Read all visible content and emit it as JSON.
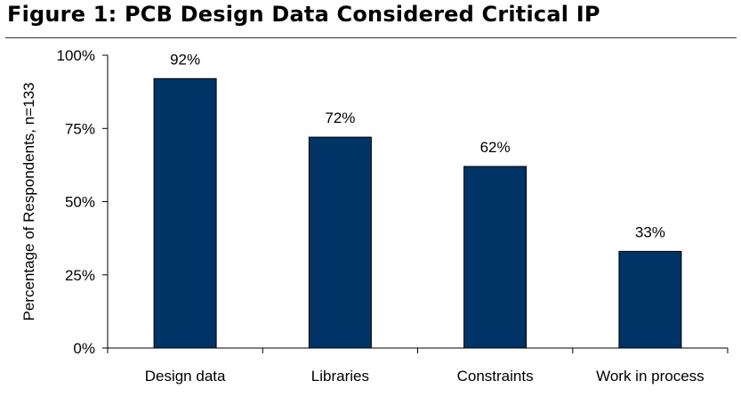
{
  "figure": {
    "title": "Figure 1: PCB Design Data Considered Critical IP"
  },
  "colors": {
    "bar_fill": "#003366",
    "bar_stroke": "#000000",
    "axis": "#000000",
    "title_rule": "#333333"
  },
  "chart_data": {
    "type": "bar",
    "categories": [
      "Design data",
      "Libraries",
      "Constraints",
      "Work in process"
    ],
    "values": [
      92,
      72,
      62,
      33
    ],
    "data_labels": [
      "92%",
      "72%",
      "62%",
      "33%"
    ],
    "ylabel": "Percentage of Respondents, n=133",
    "xlabel": "",
    "ylim": [
      0,
      100
    ],
    "yticks": [
      0,
      25,
      50,
      75,
      100
    ],
    "ytick_labels": [
      "0%",
      "25%",
      "50%",
      "75%",
      "100%"
    ],
    "grid": false,
    "legend": "none"
  }
}
